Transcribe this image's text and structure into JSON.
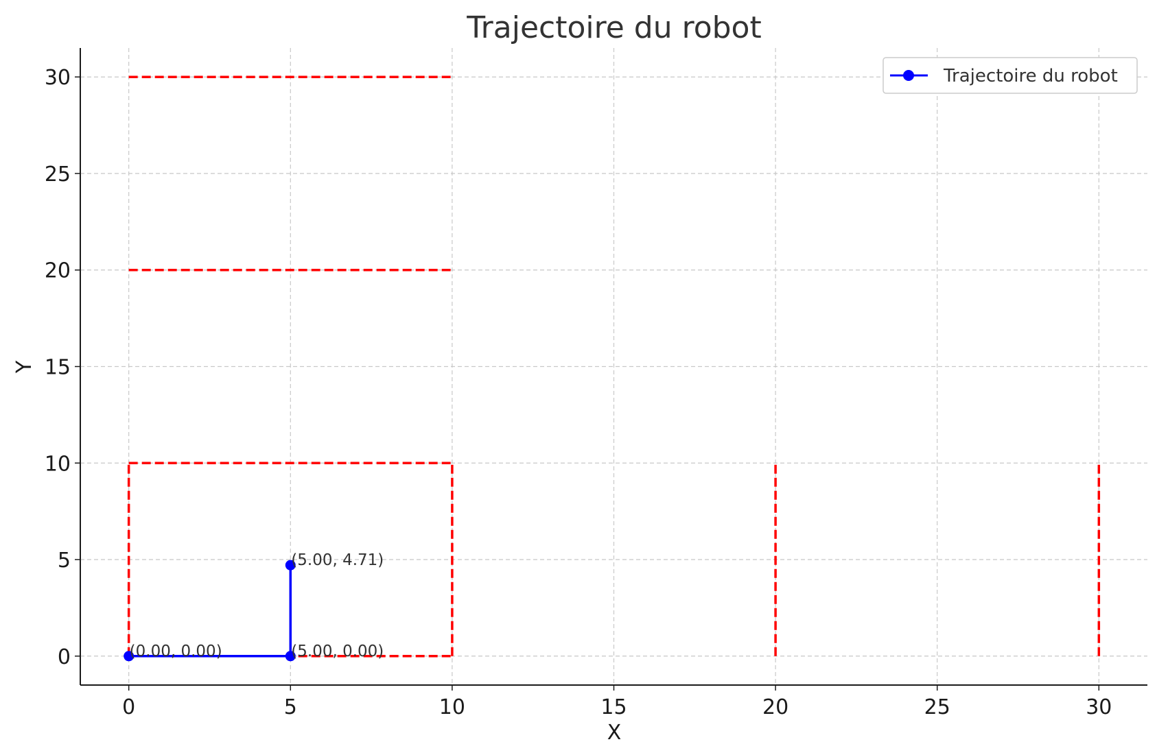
{
  "chart_data": {
    "type": "line",
    "title": "Trajectoire du robot",
    "xlabel": "X",
    "ylabel": "Y",
    "xlim": [
      -1.5,
      31.5
    ],
    "ylim": [
      -1.5,
      31.5
    ],
    "xticks": [
      0,
      5,
      10,
      15,
      20,
      25,
      30
    ],
    "yticks": [
      0,
      5,
      10,
      15,
      20,
      25,
      30
    ],
    "grid": true,
    "legend_position": "top-right",
    "series": [
      {
        "name": "Trajectoire du robot",
        "color": "#0000ff",
        "marker": "circle",
        "points": [
          [
            0,
            0
          ],
          [
            5,
            0
          ],
          [
            5,
            4.71
          ]
        ]
      }
    ],
    "annotations": [
      {
        "text": "(0.00, 0.00)",
        "x": 0,
        "y": 0
      },
      {
        "text": "(5.00, 0.00)",
        "x": 5,
        "y": 0
      },
      {
        "text": "(5.00, 4.71)",
        "x": 5,
        "y": 4.71
      }
    ],
    "walls": {
      "color": "#ff0000",
      "style": "dashed",
      "segments": [
        [
          [
            0,
            0
          ],
          [
            10,
            0
          ]
        ],
        [
          [
            0,
            10
          ],
          [
            10,
            10
          ]
        ],
        [
          [
            0,
            0
          ],
          [
            0,
            10
          ]
        ],
        [
          [
            10,
            0
          ],
          [
            10,
            10
          ]
        ],
        [
          [
            0,
            20
          ],
          [
            10,
            20
          ]
        ],
        [
          [
            0,
            30
          ],
          [
            10,
            30
          ]
        ],
        [
          [
            20,
            0
          ],
          [
            20,
            10
          ]
        ],
        [
          [
            30,
            0
          ],
          [
            30,
            10
          ]
        ]
      ]
    }
  }
}
